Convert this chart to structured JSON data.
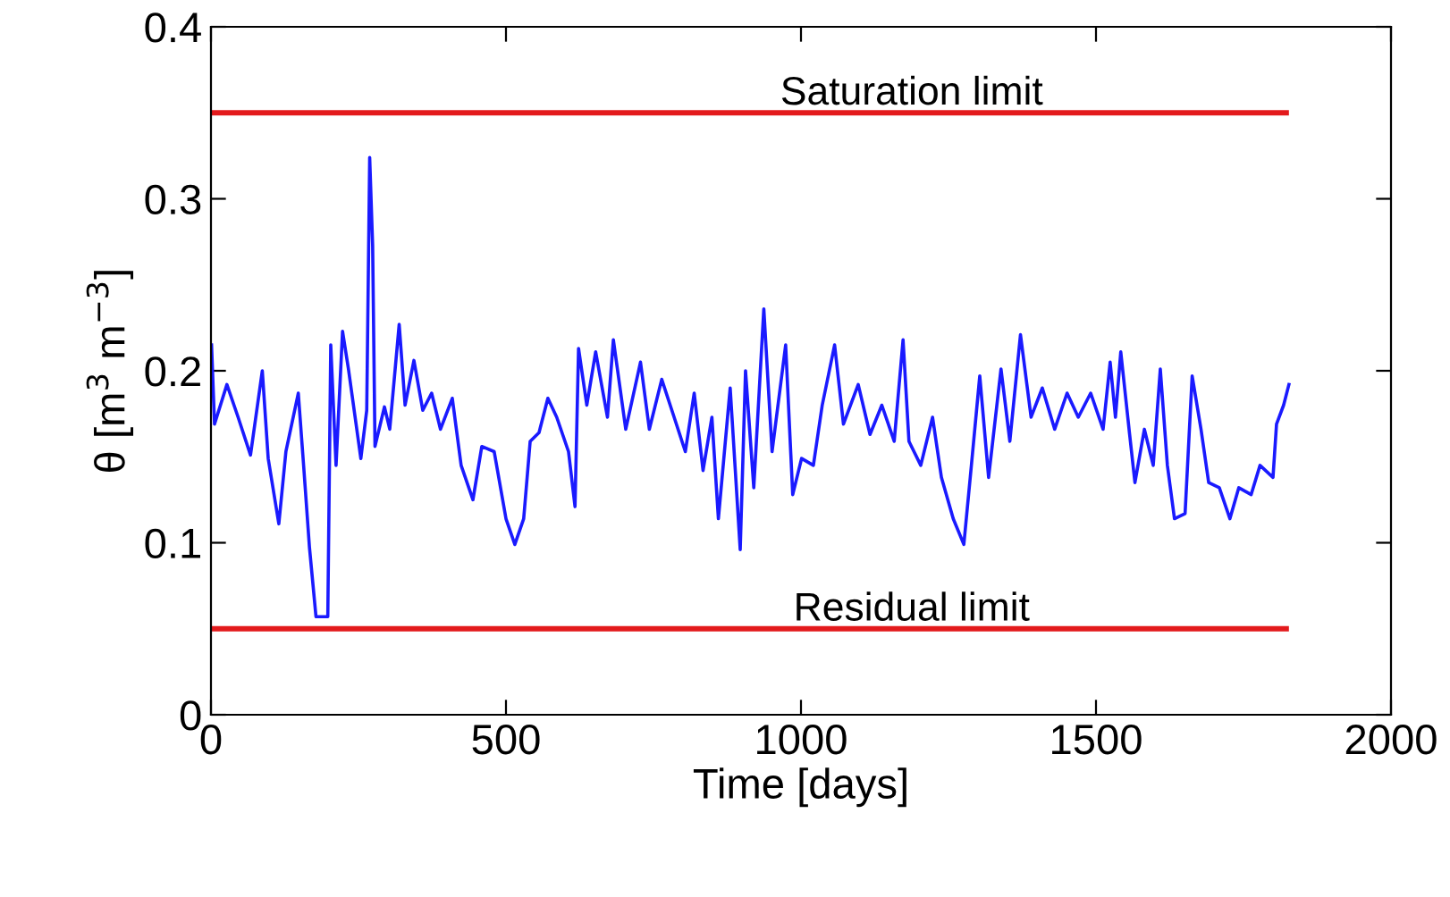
{
  "chart_data": {
    "type": "line",
    "xlabel": "Time [days]",
    "ylabel": "θ [m$^{3}$ m$^{−3}$]",
    "x": [
      1,
      6,
      27,
      46,
      67,
      87,
      97,
      115,
      127,
      148,
      157,
      167,
      178,
      198,
      203,
      212,
      223,
      233,
      254,
      264,
      269,
      274,
      278,
      294,
      303,
      319,
      329,
      344,
      359,
      374,
      389,
      409,
      424,
      444,
      459,
      480,
      500,
      515,
      530,
      541,
      556,
      571,
      586,
      606,
      617,
      623,
      637,
      652,
      672,
      682,
      703,
      728,
      743,
      764,
      785,
      804,
      819,
      834,
      849,
      860,
      880,
      897,
      906,
      920,
      937,
      951,
      974,
      986,
      1001,
      1021,
      1036,
      1057,
      1072,
      1097,
      1117,
      1137,
      1158,
      1173,
      1183,
      1203,
      1223,
      1238,
      1258,
      1276,
      1288,
      1303,
      1318,
      1339,
      1354,
      1372,
      1390,
      1409,
      1430,
      1451,
      1470,
      1491,
      1512,
      1524,
      1533,
      1542,
      1557,
      1566,
      1582,
      1597,
      1609,
      1621,
      1633,
      1651,
      1663,
      1678,
      1691,
      1709,
      1727,
      1742,
      1763,
      1778,
      1800,
      1806,
      1818,
      1827
    ],
    "series": [
      {
        "color": "#1a1aff",
        "values": [
          0.215,
          0.169,
          0.192,
          0.173,
          0.151,
          0.2,
          0.149,
          0.111,
          0.153,
          0.187,
          0.145,
          0.097,
          0.057,
          0.057,
          0.215,
          0.145,
          0.223,
          0.201,
          0.149,
          0.177,
          0.324,
          0.273,
          0.156,
          0.179,
          0.166,
          0.227,
          0.18,
          0.206,
          0.177,
          0.187,
          0.166,
          0.184,
          0.145,
          0.125,
          0.156,
          0.153,
          0.114,
          0.099,
          0.114,
          0.159,
          0.164,
          0.184,
          0.173,
          0.153,
          0.121,
          0.213,
          0.18,
          0.211,
          0.173,
          0.218,
          0.166,
          0.205,
          0.166,
          0.195,
          0.173,
          0.153,
          0.187,
          0.142,
          0.173,
          0.114,
          0.19,
          0.096,
          0.2,
          0.132,
          0.236,
          0.153,
          0.215,
          0.128,
          0.149,
          0.145,
          0.18,
          0.215,
          0.169,
          0.192,
          0.163,
          0.18,
          0.159,
          0.218,
          0.159,
          0.145,
          0.173,
          0.138,
          0.114,
          0.099,
          0.142,
          0.197,
          0.138,
          0.201,
          0.159,
          0.221,
          0.173,
          0.19,
          0.166,
          0.187,
          0.173,
          0.187,
          0.166,
          0.205,
          0.173,
          0.211,
          0.163,
          0.135,
          0.166,
          0.145,
          0.201,
          0.145,
          0.114,
          0.117,
          0.197,
          0.166,
          0.135,
          0.132,
          0.114,
          0.132,
          0.128,
          0.145,
          0.138,
          0.169,
          0.18,
          0.192
        ]
      }
    ],
    "ref_lines": [
      {
        "axis": "y",
        "value": 0.35,
        "label": "Saturation limit",
        "color": "#e31a1c"
      },
      {
        "axis": "y",
        "value": 0.05,
        "label": "Residual limit",
        "color": "#e31a1c"
      }
    ],
    "xlim": [
      0,
      2000
    ],
    "xticks": [
      0,
      500,
      1000,
      1500,
      2000
    ],
    "ylim": [
      0,
      0.4
    ],
    "yticks": [
      0,
      0.1,
      0.2,
      0.3,
      0.4
    ],
    "grid": false
  }
}
